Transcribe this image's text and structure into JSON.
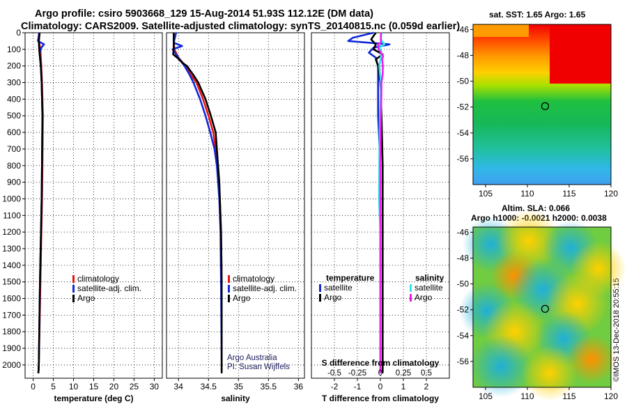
{
  "header": {
    "line1": "Argo profile: csiro 5903668_129 15-Aug-2014 51.93S 112.12E (DM data)",
    "line2": "Climatology: CARS2009. Satellite-adjusted climatology: synTS_20140815.nc (0.059d earlier)"
  },
  "maps": {
    "sst_title": "sat. SST: 1.65 Argo: 1.65",
    "sla_title1": "Altim. SLA: 0.066",
    "sla_title2": "Argo h1000: -0.0021 h2000: 0.0038",
    "lat_ticks": [
      "-46",
      "-48",
      "-50",
      "-52",
      "-54",
      "-56"
    ],
    "lon_ticks": [
      "105",
      "110",
      "115",
      "120"
    ],
    "argo_position": {
      "lon": 112.12,
      "lat": -51.93
    }
  },
  "stamp": "©IMOS 13-Dec-2018 20:55:15",
  "colors": {
    "climatology": "#e8120e",
    "satellite": "#1028d8",
    "argo": "#000000",
    "satellite_s": "#30e6e6",
    "argo_s": "#ee1cee"
  },
  "chart_data": [
    {
      "type": "line",
      "xlabel": "temperature (deg C)",
      "ylabel": "",
      "xlim": [
        -2,
        32
      ],
      "ylim": [
        2080,
        0
      ],
      "xticks": [
        "0",
        "5",
        "10",
        "15",
        "20",
        "25",
        "30"
      ],
      "yticks": [
        "0",
        "100",
        "200",
        "300",
        "400",
        "500",
        "600",
        "700",
        "800",
        "900",
        "1000",
        "1100",
        "1200",
        "1300",
        "1400",
        "1500",
        "1600",
        "1700",
        "1800",
        "1900",
        "2000"
      ],
      "legend": [
        "climatology",
        "satellite-adj. clim.",
        "Argo"
      ],
      "series": [
        {
          "name": "climatology",
          "color": "#e8120e",
          "depth": [
            0,
            50,
            100,
            200,
            300,
            500,
            800,
            1000,
            1500,
            2000,
            2050
          ],
          "values": [
            1.6,
            1.4,
            1.8,
            2.0,
            2.2,
            2.4,
            2.3,
            2.2,
            1.8,
            1.4,
            1.3
          ]
        },
        {
          "name": "satellite-adj. clim.",
          "color": "#1028d8",
          "depth": [
            0,
            50,
            70,
            90,
            120,
            150,
            200,
            300,
            500,
            800,
            1000,
            1500,
            2000,
            2050
          ],
          "values": [
            1.5,
            1.2,
            2.7,
            2.0,
            1.6,
            1.7,
            1.9,
            2.1,
            2.3,
            2.2,
            2.1,
            1.7,
            1.4,
            1.3
          ]
        },
        {
          "name": "Argo",
          "color": "#000000",
          "depth": [
            0,
            50,
            100,
            150,
            200,
            300,
            500,
            800,
            1000,
            1500,
            2000,
            2050
          ],
          "values": [
            1.6,
            1.4,
            1.5,
            1.7,
            1.9,
            2.1,
            2.3,
            2.2,
            2.1,
            1.7,
            1.4,
            1.3
          ]
        }
      ]
    },
    {
      "type": "line",
      "xlabel": "salinity",
      "xlim": [
        33.8,
        36.1
      ],
      "ylim": [
        2080,
        0
      ],
      "xticks": [
        "34",
        "34.5",
        "35",
        "35.5",
        "36"
      ],
      "legend": [
        "climatology",
        "satellite-adj. clim.",
        "Argo"
      ],
      "annotation": [
        "Argo Australia",
        "PI: Susan Wijffels"
      ],
      "series": [
        {
          "name": "climatology",
          "color": "#e8120e",
          "depth": [
            0,
            100,
            150,
            200,
            250,
            300,
            400,
            500,
            600,
            700,
            800,
            1000,
            1200,
            1500,
            2000,
            2050
          ],
          "values": [
            33.92,
            33.93,
            34.0,
            34.12,
            34.2,
            34.3,
            34.41,
            34.5,
            34.58,
            34.62,
            34.66,
            34.69,
            34.71,
            34.72,
            34.72,
            34.72
          ]
        },
        {
          "name": "satellite-adj. clim.",
          "color": "#1028d8",
          "depth": [
            0,
            60,
            80,
            100,
            130,
            150,
            200,
            250,
            300,
            400,
            500,
            600,
            700,
            800,
            1000,
            1200,
            1500,
            2000,
            2050
          ],
          "values": [
            33.96,
            33.92,
            34.06,
            33.9,
            33.96,
            34.0,
            34.1,
            34.18,
            34.25,
            34.36,
            34.45,
            34.53,
            34.6,
            34.64,
            34.68,
            34.7,
            34.71,
            34.72,
            34.72
          ]
        },
        {
          "name": "Argo",
          "color": "#000000",
          "depth": [
            0,
            100,
            130,
            150,
            180,
            200,
            250,
            300,
            400,
            500,
            600,
            700,
            800,
            900,
            1000,
            1200,
            1500,
            2000,
            2050
          ],
          "values": [
            33.92,
            33.92,
            33.91,
            33.98,
            34.06,
            34.14,
            34.24,
            34.33,
            34.45,
            34.54,
            34.62,
            34.64,
            34.66,
            34.68,
            34.69,
            34.71,
            34.72,
            34.72,
            34.72
          ]
        }
      ]
    },
    {
      "type": "line",
      "xlabel": "T difference from climatology",
      "top_xlabel": "S difference from climatology",
      "xlim": [
        -3,
        3
      ],
      "ylim": [
        2080,
        0
      ],
      "xticks": [
        "-2",
        "-1",
        "0",
        "1",
        "2"
      ],
      "top_xticks": [
        "-0.5",
        "-0.25",
        "0",
        "0.25",
        "0.5"
      ],
      "legend_temperature_title": "temperature",
      "legend_salinity_title": "salinity",
      "legend_temperature": [
        "satellite",
        "Argo"
      ],
      "legend_salinity": [
        "satellite",
        "Argo"
      ],
      "series": [
        {
          "name": "temperature satellite",
          "color": "#1028d8",
          "depth": [
            0,
            30,
            50,
            70,
            90,
            120,
            150,
            200,
            300,
            500,
            800,
            1000,
            1500,
            2000,
            2050
          ],
          "values": [
            -0.3,
            -1.2,
            -1.4,
            0.4,
            -0.3,
            -0.5,
            -0.2,
            -0.1,
            -0.1,
            -0.1,
            0.0,
            0.0,
            0.0,
            0.0,
            0.0
          ]
        },
        {
          "name": "temperature Argo",
          "color": "#000000",
          "depth": [
            0,
            40,
            70,
            100,
            130,
            160,
            200,
            300,
            500,
            800,
            1000,
            1500,
            2000,
            2050
          ],
          "values": [
            -0.2,
            -0.4,
            -0.2,
            -0.3,
            0.1,
            -0.2,
            -0.1,
            0.0,
            0.05,
            0.1,
            0.1,
            0.1,
            0.1,
            0.1
          ]
        },
        {
          "name": "salinity satellite",
          "color": "#30e6e6",
          "depth": [
            0,
            40,
            70,
            90,
            110,
            150,
            200,
            300,
            500,
            800,
            1000,
            1200,
            1500,
            2000,
            2050
          ],
          "values": [
            0.05,
            0.02,
            0.18,
            -0.05,
            0.04,
            0.02,
            -0.05,
            0.02,
            -0.02,
            -0.05,
            -0.06,
            0.0,
            0.0,
            0.0,
            0.0
          ]
        },
        {
          "name": "salinity Argo",
          "color": "#ee1cee",
          "depth": [
            0,
            60,
            70,
            100,
            120,
            140,
            160,
            200,
            250,
            300,
            400,
            500,
            600,
            800,
            1000,
            2000,
            2050
          ],
          "values": [
            0.02,
            0.02,
            -0.1,
            -0.08,
            0.02,
            0.12,
            0.08,
            0.11,
            0.1,
            0.05,
            0.04,
            0.02,
            0.01,
            0.0,
            0.0,
            0.0,
            0.0
          ]
        }
      ]
    }
  ]
}
